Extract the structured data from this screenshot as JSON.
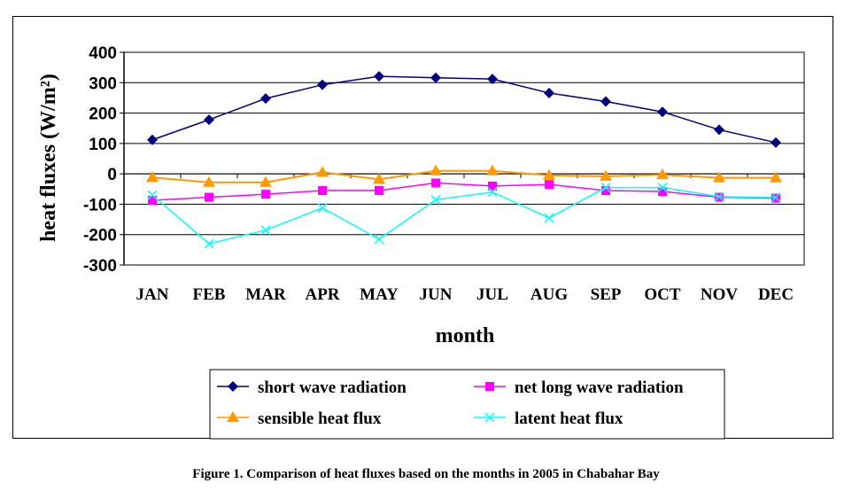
{
  "chart_data": {
    "type": "line",
    "title": "",
    "xlabel": "month",
    "ylabel": "heat fluxes (W/m²)",
    "ylabel_parts": {
      "main": "heat fluxes",
      "unit": "(W/m²)"
    },
    "ylim": [
      -300,
      400
    ],
    "yticks": [
      400,
      300,
      200,
      100,
      0,
      -100,
      -200,
      -300
    ],
    "grid": true,
    "categories": [
      "JAN",
      "FEB",
      "MAR",
      "APR",
      "MAY",
      "JUN",
      "JUL",
      "AUG",
      "SEP",
      "OCT",
      "NOV",
      "DEC"
    ],
    "legend_position": "bottom",
    "series": [
      {
        "name": "short wave radiation",
        "color": "#000080",
        "marker": "diamond",
        "values": [
          112,
          178,
          248,
          293,
          321,
          316,
          312,
          266,
          238,
          204,
          145,
          103
        ]
      },
      {
        "name": "net long wave radiation",
        "color": "#FF00FF",
        "marker": "square",
        "values": [
          -87,
          -77,
          -67,
          -55,
          -55,
          -30,
          -40,
          -35,
          -55,
          -58,
          -77,
          -80
        ]
      },
      {
        "name": "sensible heat flux",
        "color": "#FF9900",
        "marker": "triangle",
        "values": [
          -12,
          -28,
          -28,
          5,
          -18,
          10,
          10,
          -5,
          -8,
          -3,
          -13,
          -13
        ]
      },
      {
        "name": "latent heat flux",
        "color": "#00FFFF",
        "marker": "x",
        "values": [
          -70,
          -230,
          -185,
          -112,
          -215,
          -85,
          -60,
          -145,
          -45,
          -45,
          -75,
          -78
        ]
      }
    ]
  },
  "caption": "Figure 1. Comparison of heat fluxes based on the months in 2005 in Chabahar Bay"
}
